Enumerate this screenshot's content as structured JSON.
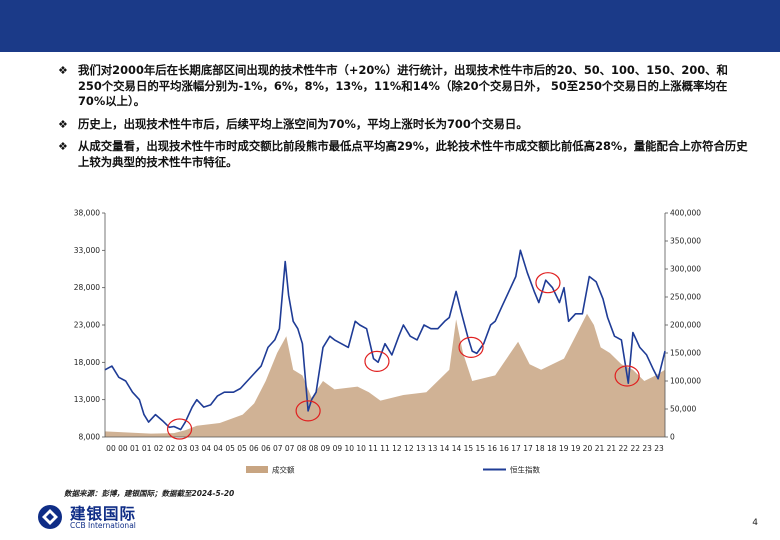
{
  "bullets": [
    "我们对2000年后在长期底部区间出现的技术性牛市（+20%）进行统计，出现技术性牛市后的20、50、100、150、200、和250个交易日的平均涨幅分别为-1%，6%，8%，13%，11%和14%（除20个交易日外， 50至250个交易日的上涨概率均在70%以上）。",
    "历史上，出现技术性牛市后，后续平均上涨空间为70%，平均上涨时长为700个交易日。",
    "从成交量看，出现技术性牛市时成交额比前段熊市最低点平均高29%，此轮技术性牛市成交额比前低高28%，量能配合上亦符合历史上较为典型的技术性牛市特征。"
  ],
  "bullet_mark": "❖",
  "source": "数据来源：彭博，建银国际；数据截至2024-5-20",
  "logo_cn": "建银国际",
  "logo_en": "CCB International",
  "page_number": "4",
  "colors": {
    "header": "#1b3a88",
    "index_line": "#1f3c96",
    "volume_area": "#c8a582",
    "circle": "#e02020"
  },
  "chart_data": {
    "type": "line",
    "x_ticks": [
      "00",
      "00",
      "01",
      "01",
      "02",
      "02",
      "03",
      "03",
      "04",
      "04",
      "05",
      "05",
      "06",
      "06",
      "07",
      "07",
      "08",
      "08",
      "09",
      "09",
      "10",
      "10",
      "11",
      "11",
      "12",
      "12",
      "13",
      "13",
      "14",
      "14",
      "15",
      "15",
      "16",
      "16",
      "17",
      "17",
      "18",
      "18",
      "19",
      "19",
      "20",
      "21",
      "21",
      "22",
      "22",
      "23",
      "23"
    ],
    "x_range": [
      2000.0,
      2024.4
    ],
    "y_left": {
      "ticks": [
        "8,000",
        "13,000",
        "18,000",
        "23,000",
        "28,000",
        "33,000",
        "38,000"
      ],
      "range": [
        8000,
        38000
      ]
    },
    "y_right": {
      "ticks": [
        "0",
        "50,000",
        "100,000",
        "150,000",
        "200,000",
        "250,000",
        "300,000",
        "350,000",
        "400,000"
      ],
      "range": [
        0,
        400000
      ]
    },
    "series": [
      {
        "name": "恒生指数",
        "axis": "left",
        "type": "line",
        "x": [
          2000.0,
          2000.3,
          2000.6,
          2000.9,
          2001.2,
          2001.5,
          2001.7,
          2001.9,
          2002.2,
          2002.5,
          2002.8,
          2003.0,
          2003.3,
          2003.5,
          2003.8,
          2004.0,
          2004.3,
          2004.6,
          2004.9,
          2005.2,
          2005.6,
          2005.9,
          2006.2,
          2006.5,
          2006.8,
          2007.1,
          2007.4,
          2007.6,
          2007.85,
          2008.0,
          2008.2,
          2008.4,
          2008.6,
          2008.85,
          2009.0,
          2009.2,
          2009.5,
          2009.8,
          2010.0,
          2010.3,
          2010.6,
          2010.9,
          2011.1,
          2011.4,
          2011.7,
          2011.9,
          2012.2,
          2012.5,
          2012.8,
          2013.0,
          2013.3,
          2013.6,
          2013.9,
          2014.2,
          2014.5,
          2014.8,
          2015.0,
          2015.3,
          2015.5,
          2015.8,
          2016.0,
          2016.2,
          2016.5,
          2016.8,
          2017.0,
          2017.3,
          2017.6,
          2017.9,
          2018.1,
          2018.4,
          2018.7,
          2018.9,
          2019.2,
          2019.5,
          2019.8,
          2020.0,
          2020.2,
          2020.5,
          2020.8,
          2021.1,
          2021.4,
          2021.7,
          2021.9,
          2022.2,
          2022.5,
          2022.8,
          2023.0,
          2023.3,
          2023.6,
          2023.9,
          2024.1,
          2024.4
        ],
        "values": [
          17000,
          17500,
          16000,
          15500,
          14000,
          13000,
          11000,
          10000,
          11000,
          10200,
          9300,
          9400,
          9000,
          10000,
          12000,
          13000,
          12000,
          12300,
          13500,
          14000,
          14000,
          14500,
          15500,
          16500,
          17500,
          20000,
          21000,
          22500,
          31500,
          27000,
          23500,
          22500,
          20500,
          11500,
          13000,
          14000,
          20000,
          21500,
          21000,
          20500,
          20000,
          23500,
          23000,
          22500,
          18500,
          18000,
          20500,
          19000,
          21500,
          23000,
          21500,
          21000,
          23000,
          22500,
          22500,
          23500,
          24000,
          27500,
          25000,
          21500,
          19500,
          19200,
          20500,
          23000,
          23500,
          25500,
          27500,
          29500,
          33000,
          30000,
          27500,
          26000,
          29000,
          28000,
          26000,
          28000,
          23500,
          24500,
          24500,
          29500,
          28800,
          26500,
          24000,
          21500,
          21000,
          15200,
          22000,
          20000,
          19000,
          17000,
          15800,
          19500
        ]
      },
      {
        "name": "成交额",
        "axis": "right",
        "type": "area",
        "x": [
          2000.0,
          2001.0,
          2002.0,
          2003.0,
          2003.5,
          2004.0,
          2005.0,
          2006.0,
          2006.5,
          2007.0,
          2007.5,
          2007.9,
          2008.2,
          2008.6,
          2009.0,
          2009.5,
          2010.0,
          2011.0,
          2011.5,
          2012.0,
          2013.0,
          2014.0,
          2015.0,
          2015.3,
          2015.6,
          2016.0,
          2017.0,
          2017.5,
          2018.0,
          2018.5,
          2019.0,
          2020.0,
          2020.5,
          2021.0,
          2021.3,
          2021.6,
          2022.0,
          2022.5,
          2023.0,
          2023.5,
          2024.0,
          2024.4
        ],
        "values": [
          10000,
          8000,
          6000,
          7000,
          12000,
          20000,
          25000,
          40000,
          60000,
          100000,
          150000,
          180000,
          120000,
          110000,
          70000,
          100000,
          85000,
          90000,
          80000,
          65000,
          75000,
          80000,
          120000,
          210000,
          150000,
          100000,
          110000,
          140000,
          170000,
          130000,
          120000,
          140000,
          180000,
          220000,
          200000,
          160000,
          150000,
          130000,
          120000,
          100000,
          110000,
          120000
        ]
      }
    ],
    "highlight_years": [
      2003.25,
      2008.85,
      2011.85,
      2015.95,
      2019.3,
      2022.75
    ],
    "legend_position": "bottom",
    "grid": false
  }
}
